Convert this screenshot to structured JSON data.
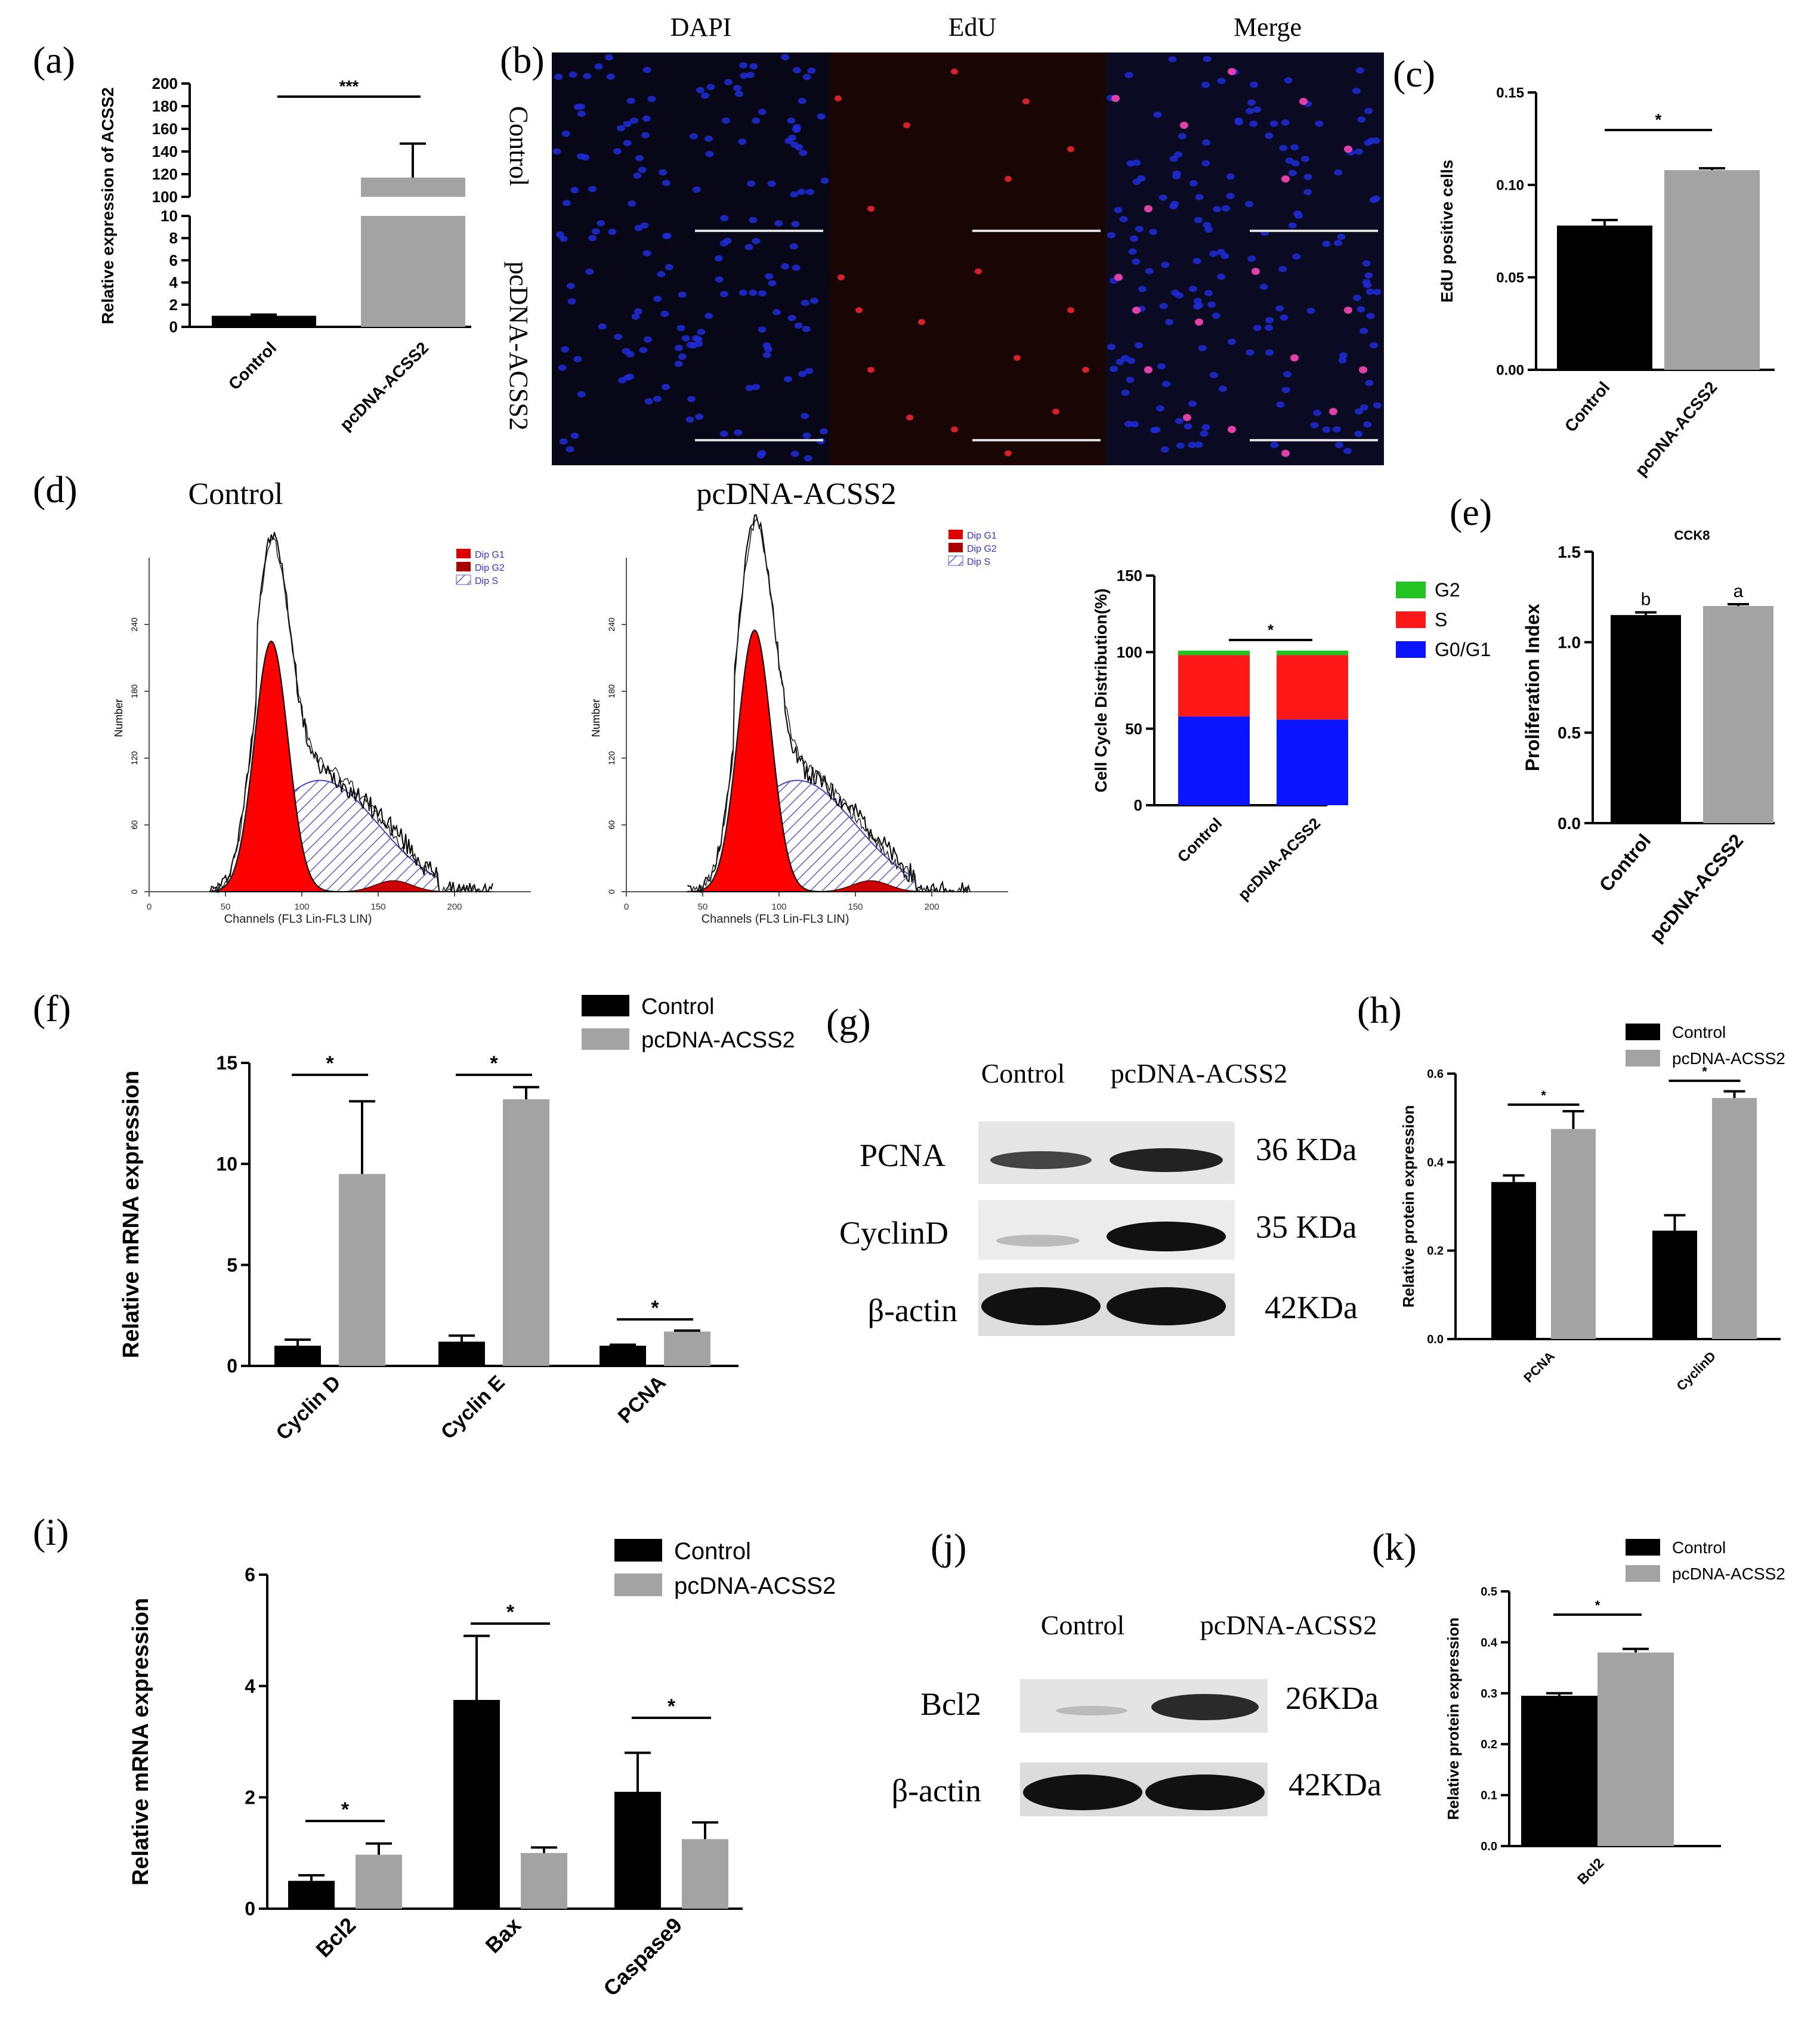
{
  "colors": {
    "control": "#000000",
    "treatment": "#a3a3a3",
    "g2": "#22c322",
    "s": "#ff1818",
    "g0g1": "#0a14ff",
    "flow_fill": "#ff0000",
    "flow_s": "#6f6fd0",
    "dapi": "#1e2bd8",
    "edu": "#d8202a"
  },
  "panel_a": {
    "letter": "(a)",
    "chart_data": {
      "type": "bar",
      "categories": [
        "Control",
        "pcDNA-ACSS2"
      ],
      "values": [
        1.0,
        117
      ],
      "errors": [
        0.1,
        30
      ],
      "ylabel": "Relative expression of ACSS2",
      "ylim": [
        0,
        200
      ],
      "y_break": [
        10,
        100
      ],
      "yticks_low": [
        "0",
        "2",
        "4",
        "6",
        "8",
        "10"
      ],
      "yticks_high": [
        "100",
        "120",
        "140",
        "160",
        "180",
        "200"
      ],
      "significance": "***"
    }
  },
  "panel_b": {
    "letter": "(b)",
    "columns": [
      "DAPI",
      "EdU",
      "Merge"
    ],
    "rows": [
      "Control",
      "pcDNA-ACSS2"
    ]
  },
  "panel_c": {
    "letter": "(c)",
    "chart_data": {
      "type": "bar",
      "categories": [
        "Control",
        "pcDNA-ACSS2"
      ],
      "values": [
        0.078,
        0.108
      ],
      "errors": [
        0.003,
        0.001
      ],
      "ylabel": "EdU positive cells",
      "ylim": [
        0,
        0.15
      ],
      "yticks": [
        "0.00",
        "0.05",
        "0.10",
        "0.15"
      ],
      "significance": "*"
    }
  },
  "panel_d": {
    "letter": "(d)",
    "histogram_titles": [
      "Control",
      "pcDNA-ACSS2"
    ],
    "histogram_legend": [
      "Dip G1",
      "Dip G2",
      "Dip S"
    ],
    "histogram_xlabel": "Channels (FL3 Lin-FL3 LIN)",
    "histogram_ylabel": "Number",
    "histogram_xticks": [
      "0",
      "50",
      "100",
      "150",
      "200"
    ],
    "histogram_yticks": [
      "0",
      "60",
      "120",
      "180",
      "240"
    ],
    "chart_data": {
      "type": "bar",
      "stacked": true,
      "categories": [
        "Control",
        "pcDNA-ACSS2"
      ],
      "series": [
        {
          "name": "G0/G1",
          "values": [
            58,
            56
          ]
        },
        {
          "name": "S",
          "values": [
            40,
            42
          ]
        },
        {
          "name": "G2",
          "values": [
            3,
            3
          ]
        }
      ],
      "ylabel": "Cell Cycle Distribution(%)",
      "ylim": [
        0,
        150
      ],
      "yticks": [
        "0",
        "50",
        "100",
        "150"
      ],
      "legend": [
        "G2",
        "S",
        "G0/G1"
      ],
      "significance": "*"
    }
  },
  "panel_e": {
    "letter": "(e)",
    "chart_data": {
      "type": "bar",
      "title": "CCK8",
      "categories": [
        "Control",
        "pcDNA-ACSS2"
      ],
      "values": [
        1.15,
        1.2
      ],
      "errors": [
        0.015,
        0.01
      ],
      "letters": [
        "b",
        "a"
      ],
      "ylabel": "Proliferation Index",
      "ylim": [
        0,
        1.5
      ],
      "yticks": [
        "0.0",
        "0.5",
        "1.0",
        "1.5"
      ]
    }
  },
  "panel_f": {
    "letter": "(f)",
    "chart_data": {
      "type": "bar",
      "categories": [
        "Cyclin D",
        "Cyclin E",
        "PCNA"
      ],
      "series": [
        {
          "name": "Control",
          "values": [
            1.0,
            1.2,
            1.0
          ],
          "errors": [
            0.3,
            0.3,
            0.05
          ]
        },
        {
          "name": "pcDNA-ACSS2",
          "values": [
            9.5,
            13.2,
            1.7
          ],
          "errors": [
            3.6,
            0.6,
            0.05
          ]
        }
      ],
      "ylabel": "Relative mRNA expression",
      "ylim": [
        0,
        15
      ],
      "yticks": [
        "0",
        "5",
        "10",
        "15"
      ],
      "significance": [
        "*",
        "*",
        "*"
      ]
    }
  },
  "panel_g": {
    "letter": "(g)",
    "lanes": [
      "Control",
      "pcDNA-ACSS2"
    ],
    "bands": [
      {
        "name": "PCNA",
        "size": "36 KDa"
      },
      {
        "name": "CyclinD",
        "size": "35 KDa"
      },
      {
        "name": "β-actin",
        "size": "42KDa"
      }
    ]
  },
  "panel_h": {
    "letter": "(h)",
    "chart_data": {
      "type": "bar",
      "categories": [
        "PCNA",
        "CyclinD"
      ],
      "series": [
        {
          "name": "Control",
          "values": [
            0.355,
            0.245
          ],
          "errors": [
            0.015,
            0.035
          ]
        },
        {
          "name": "pcDNA-ACSS2",
          "values": [
            0.475,
            0.545
          ],
          "errors": [
            0.04,
            0.015
          ]
        }
      ],
      "ylabel": "Relative protein expression",
      "ylim": [
        0,
        0.6
      ],
      "yticks": [
        "0.0",
        "0.2",
        "0.4",
        "0.6"
      ],
      "significance": [
        "*",
        "*"
      ]
    }
  },
  "panel_i": {
    "letter": "(i)",
    "chart_data": {
      "type": "bar",
      "categories": [
        "Bcl2",
        "Bax",
        "Caspase9"
      ],
      "series": [
        {
          "name": "Control",
          "values": [
            0.5,
            3.75,
            2.1
          ],
          "errors": [
            0.1,
            1.15,
            0.7
          ]
        },
        {
          "name": "pcDNA-ACSS2",
          "values": [
            0.97,
            1.0,
            1.25
          ],
          "errors": [
            0.2,
            0.1,
            0.3
          ]
        }
      ],
      "ylabel": "Relative mRNA expression",
      "ylim": [
        0,
        6
      ],
      "yticks": [
        "0",
        "2",
        "4",
        "6"
      ],
      "significance": [
        "*",
        "*",
        "*"
      ]
    }
  },
  "panel_j": {
    "letter": "(j)",
    "lanes": [
      "Control",
      "pcDNA-ACSS2"
    ],
    "bands": [
      {
        "name": "Bcl2",
        "size": "26KDa"
      },
      {
        "name": "β-actin",
        "size": "42KDa"
      }
    ]
  },
  "panel_k": {
    "letter": "(k)",
    "chart_data": {
      "type": "bar",
      "categories": [
        "Bcl2"
      ],
      "series": [
        {
          "name": "Control",
          "values": [
            0.295
          ],
          "errors": [
            0.005
          ]
        },
        {
          "name": "pcDNA-ACSS2",
          "values": [
            0.38
          ],
          "errors": [
            0.007
          ]
        }
      ],
      "ylabel": "Relative protein expression",
      "ylim": [
        0,
        0.5
      ],
      "yticks": [
        "0.0",
        "0.1",
        "0.2",
        "0.3",
        "0.4",
        "0.5"
      ],
      "significance": [
        "*"
      ]
    }
  }
}
